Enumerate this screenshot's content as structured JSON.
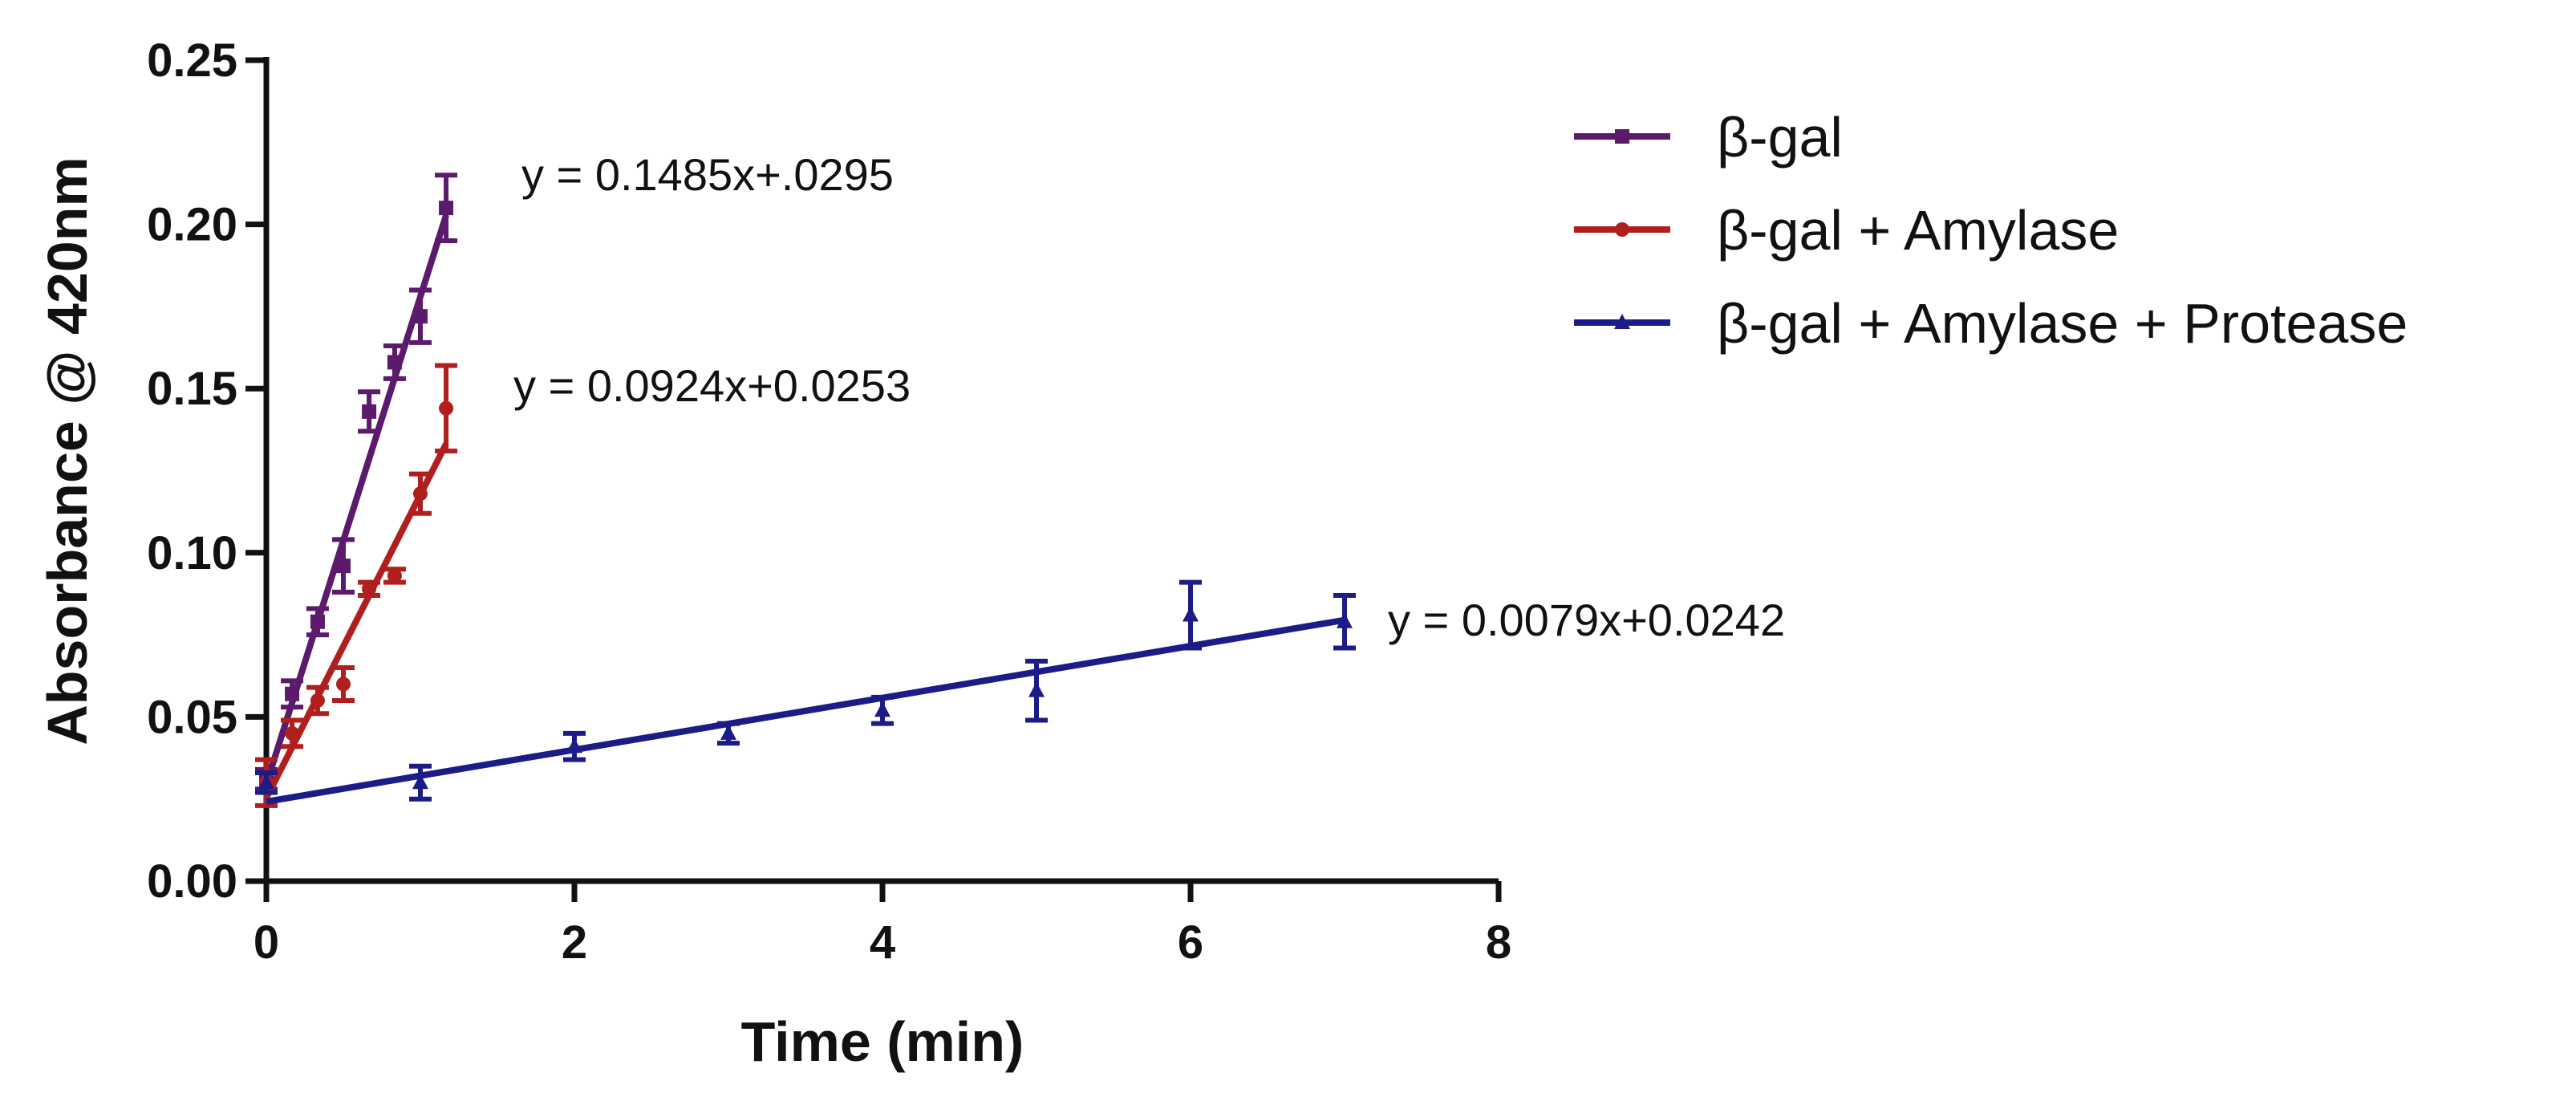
{
  "chart_data": {
    "type": "line",
    "title": "",
    "xlabel": "Time (min)",
    "ylabel": "Absorbance @ 420nm",
    "xlim": [
      0,
      8
    ],
    "ylim": [
      0,
      0.25
    ],
    "xticks": [
      0,
      2,
      4,
      6,
      8
    ],
    "xtick_labels": [
      "0",
      "2",
      "4",
      "6",
      "8"
    ],
    "yticks": [
      0,
      0.05,
      0.1,
      0.15,
      0.2,
      0.25
    ],
    "ytick_labels": [
      "0.00",
      "0.05",
      "0.10",
      "0.15",
      "0.20",
      "0.25"
    ],
    "grid": false,
    "legend_position": "top-right",
    "series": [
      {
        "name": "β-gal",
        "color": "#5b1a6b",
        "marker": "square",
        "x": [
          0,
          0.167,
          0.333,
          0.5,
          0.667,
          0.833,
          1.0,
          1.167
        ],
        "y": [
          0.031,
          0.057,
          0.079,
          0.096,
          0.143,
          0.158,
          0.172,
          0.205
        ],
        "err": [
          0.003,
          0.004,
          0.004,
          0.008,
          0.006,
          0.005,
          0.008,
          0.01
        ],
        "fit": {
          "slope": 0.1485,
          "intercept": 0.0295,
          "x_range": [
            0,
            1.167
          ]
        },
        "equation": "y = 0.1485x+.0295"
      },
      {
        "name": "β-gal + Amylase",
        "color": "#b01e1e",
        "marker": "circle",
        "x": [
          0,
          0.167,
          0.333,
          0.5,
          0.667,
          0.833,
          1.0,
          1.167
        ],
        "y": [
          0.03,
          0.045,
          0.055,
          0.06,
          0.089,
          0.093,
          0.118,
          0.144
        ],
        "err": [
          0.007,
          0.004,
          0.004,
          0.005,
          0.002,
          0.002,
          0.006,
          0.013
        ],
        "fit": {
          "slope": 0.0924,
          "intercept": 0.0253,
          "x_range": [
            0,
            1.167
          ]
        },
        "equation": "y = 0.0924x+0.0253"
      },
      {
        "name": "β-gal + Amylase + Protease",
        "color": "#1c1c88",
        "marker": "triangle",
        "x": [
          0,
          1,
          2,
          3,
          4,
          5,
          6,
          7
        ],
        "y": [
          0.03,
          0.03,
          0.041,
          0.045,
          0.052,
          0.058,
          0.081,
          0.079
        ],
        "err": [
          0.003,
          0.005,
          0.004,
          0.003,
          0.004,
          0.009,
          0.01,
          0.008
        ],
        "fit": {
          "slope": 0.0079,
          "intercept": 0.0242,
          "x_range": [
            0,
            7
          ]
        },
        "equation": "y = 0.0079x+0.0242"
      }
    ]
  }
}
